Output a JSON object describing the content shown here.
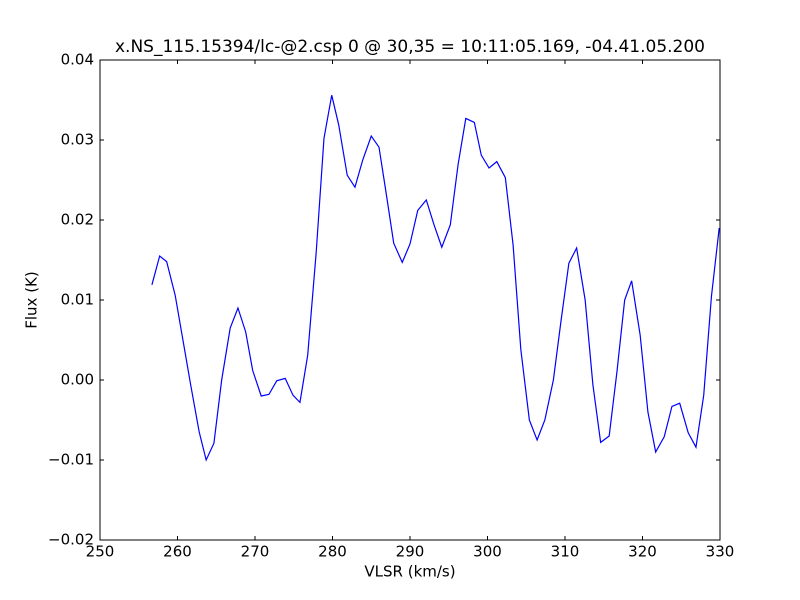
{
  "chart_data": {
    "type": "line",
    "title": "x.NS_115.15394/lc-@2.csp 0 @ 30,35 = 10:11:05.169, -04.41.05.200",
    "x_label": "VLSR (km/s)",
    "y_label": "Flux (K)",
    "xlim": [
      250,
      330
    ],
    "ylim": [
      -0.02,
      0.04
    ],
    "xticks": [
      250,
      260,
      270,
      280,
      290,
      300,
      310,
      320,
      330
    ],
    "yticks": [
      {
        "value": -0.02,
        "label": "−0.02"
      },
      {
        "value": -0.01,
        "label": "−0.01"
      },
      {
        "value": 0,
        "label": "0.00"
      },
      0.01,
      0.02,
      0.03,
      0.04
    ],
    "grid": false,
    "series": [
      {
        "color": "#0000ff",
        "x": [
          256.7,
          257.7,
          258.6,
          259.7,
          260.7,
          261.7,
          262.8,
          263.7,
          264.7,
          265.7,
          266.8,
          267.8,
          268.8,
          269.7,
          270.8,
          271.8,
          272.8,
          273.9,
          274.9,
          275.8,
          276.8,
          277.9,
          278.9,
          279.9,
          280.8,
          281.9,
          282.9,
          283.9,
          285.0,
          286.0,
          286.9,
          287.9,
          289.0,
          290.0,
          291.0,
          292.1,
          293.1,
          294.1,
          295.2,
          296.2,
          297.2,
          298.3,
          299.2,
          300.2,
          301.2,
          302.3,
          303.3,
          304.3,
          305.4,
          306.4,
          307.4,
          308.5,
          309.5,
          310.5,
          311.5,
          312.6,
          313.6,
          314.6,
          315.7,
          316.7,
          317.7,
          318.6,
          319.7,
          320.7,
          321.7,
          322.8,
          323.8,
          324.8,
          325.9,
          326.9,
          327.9,
          328.9,
          329.9
        ],
        "values": [
          0.0119,
          0.0155,
          0.0148,
          0.0106,
          0.005,
          -0.0006,
          -0.0065,
          -0.01,
          -0.0079,
          0.0,
          0.0065,
          0.009,
          0.006,
          0.0012,
          -0.002,
          -0.0018,
          -0.0001,
          0.0002,
          -0.0019,
          -0.0028,
          0.0031,
          0.016,
          0.0302,
          0.0356,
          0.0319,
          0.0256,
          0.0241,
          0.0275,
          0.0305,
          0.0291,
          0.0235,
          0.0171,
          0.0147,
          0.017,
          0.0212,
          0.0225,
          0.0194,
          0.0166,
          0.0194,
          0.0269,
          0.0327,
          0.0322,
          0.0281,
          0.0265,
          0.0273,
          0.0253,
          0.0169,
          0.0038,
          -0.005,
          -0.0075,
          -0.005,
          0.0,
          0.0075,
          0.0146,
          0.0165,
          0.01,
          -0.0006,
          -0.0078,
          -0.007,
          0.001,
          0.01,
          0.0124,
          0.0056,
          -0.004,
          -0.009,
          -0.0071,
          -0.0033,
          -0.0029,
          -0.0066,
          -0.0084,
          -0.0019,
          0.0105,
          0.019
        ]
      }
    ]
  }
}
